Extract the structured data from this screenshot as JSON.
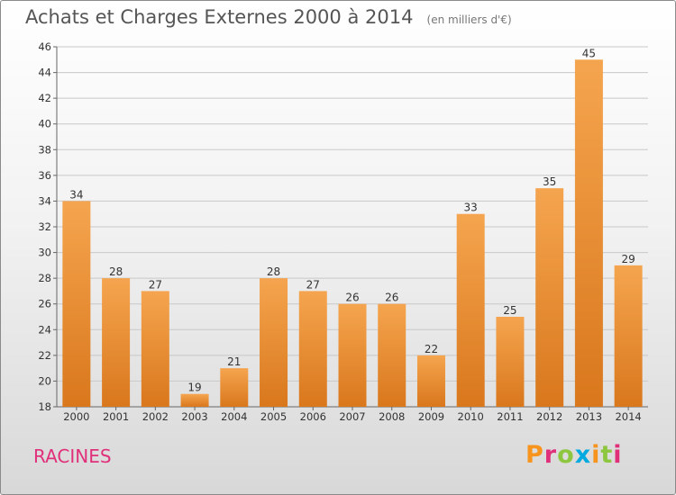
{
  "header": {
    "title": "Achats et Charges Externes 2000 à 2014",
    "subtitle": "(en milliers d'€)"
  },
  "footer": {
    "commune": "RACINES",
    "logo_text": "Proxiti",
    "logo_colors": [
      "#f7941d",
      "#e0307a",
      "#8dc63f",
      "#00a9e0",
      "#f7941d",
      "#8dc63f",
      "#e0307a"
    ]
  },
  "colors": {
    "bar_top": "#f5a54f",
    "bar_bottom": "#d9771c",
    "commune_text": "#e0307a"
  },
  "chart_data": {
    "type": "bar",
    "title": "Achats et Charges Externes 2000 à 2014",
    "subtitle": "(en milliers d'€)",
    "categories": [
      "2000",
      "2001",
      "2002",
      "2003",
      "2004",
      "2005",
      "2006",
      "2007",
      "2008",
      "2009",
      "2010",
      "2011",
      "2012",
      "2013",
      "2014"
    ],
    "values": [
      34,
      28,
      27,
      19,
      21,
      28,
      27,
      26,
      26,
      22,
      33,
      25,
      35,
      45,
      29
    ],
    "ylim": [
      18,
      46
    ],
    "yticks": [
      18,
      20,
      22,
      24,
      26,
      28,
      30,
      32,
      34,
      36,
      38,
      40,
      42,
      44,
      46
    ],
    "grid": true,
    "data_labels": true
  }
}
